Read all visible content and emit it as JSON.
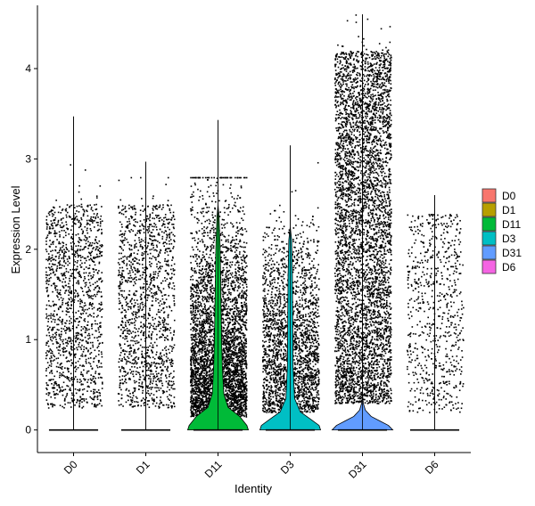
{
  "chart_data": {
    "type": "violin",
    "xlabel": "Identity",
    "ylabel": "Expression Level",
    "ylim": [
      -0.25,
      4.7
    ],
    "yticks": [
      0,
      1,
      2,
      3,
      4
    ],
    "grid": false,
    "legend_position": "right",
    "categories": [
      "D0",
      "D1",
      "D11",
      "D3",
      "D31",
      "D6"
    ],
    "series": [
      {
        "name": "D0",
        "color": "#F8766D",
        "max": 3.47,
        "point_count": 1400,
        "point_max": 3.1,
        "violin": [
          [
            0,
            0.0
          ],
          [
            0.05,
            0.0
          ],
          [
            0.3,
            0.0
          ],
          [
            3.47,
            0.0
          ]
        ]
      },
      {
        "name": "D1",
        "color": "#B79F00",
        "max": 2.97,
        "point_count": 1400,
        "point_max": 2.8,
        "violin": [
          [
            0,
            0.0
          ],
          [
            0.05,
            0.0
          ],
          [
            0.3,
            0.0
          ],
          [
            2.97,
            0.0
          ]
        ]
      },
      {
        "name": "D11",
        "color": "#00BA38",
        "max": 3.43,
        "point_count": 4200,
        "point_max": 2.8,
        "violin": [
          [
            0,
            0.42
          ],
          [
            0.05,
            0.4
          ],
          [
            0.15,
            0.3
          ],
          [
            0.25,
            0.14
          ],
          [
            0.4,
            0.08
          ],
          [
            0.7,
            0.06
          ],
          [
            1.0,
            0.05
          ],
          [
            1.5,
            0.04
          ],
          [
            2.0,
            0.03
          ],
          [
            2.35,
            0.015
          ],
          [
            2.5,
            0.0
          ],
          [
            3.43,
            0.0
          ]
        ]
      },
      {
        "name": "D3",
        "color": "#00BFC4",
        "max": 3.15,
        "point_count": 2300,
        "point_max": 3.05,
        "violin": [
          [
            0,
            0.42
          ],
          [
            0.05,
            0.4
          ],
          [
            0.12,
            0.28
          ],
          [
            0.2,
            0.14
          ],
          [
            0.35,
            0.06
          ],
          [
            0.7,
            0.04
          ],
          [
            1.2,
            0.035
          ],
          [
            1.7,
            0.03
          ],
          [
            2.1,
            0.02
          ],
          [
            2.25,
            0.0
          ],
          [
            3.15,
            0.0
          ]
        ]
      },
      {
        "name": "D31",
        "color": "#619CFF",
        "max": 4.6,
        "point_count": 4800,
        "point_max": 4.6,
        "violin": [
          [
            0,
            0.42
          ],
          [
            0.05,
            0.36
          ],
          [
            0.1,
            0.24
          ],
          [
            0.15,
            0.12
          ],
          [
            0.22,
            0.04
          ],
          [
            0.3,
            0.01
          ],
          [
            0.4,
            0.0
          ],
          [
            4.6,
            0.0
          ]
        ]
      },
      {
        "name": "D6",
        "color": "#F564E3",
        "max": 2.6,
        "point_count": 700,
        "point_max": 2.45,
        "violin": [
          [
            0,
            0.0
          ],
          [
            0.05,
            0.0
          ],
          [
            0.3,
            0.0
          ],
          [
            2.6,
            0.0
          ]
        ]
      }
    ]
  }
}
